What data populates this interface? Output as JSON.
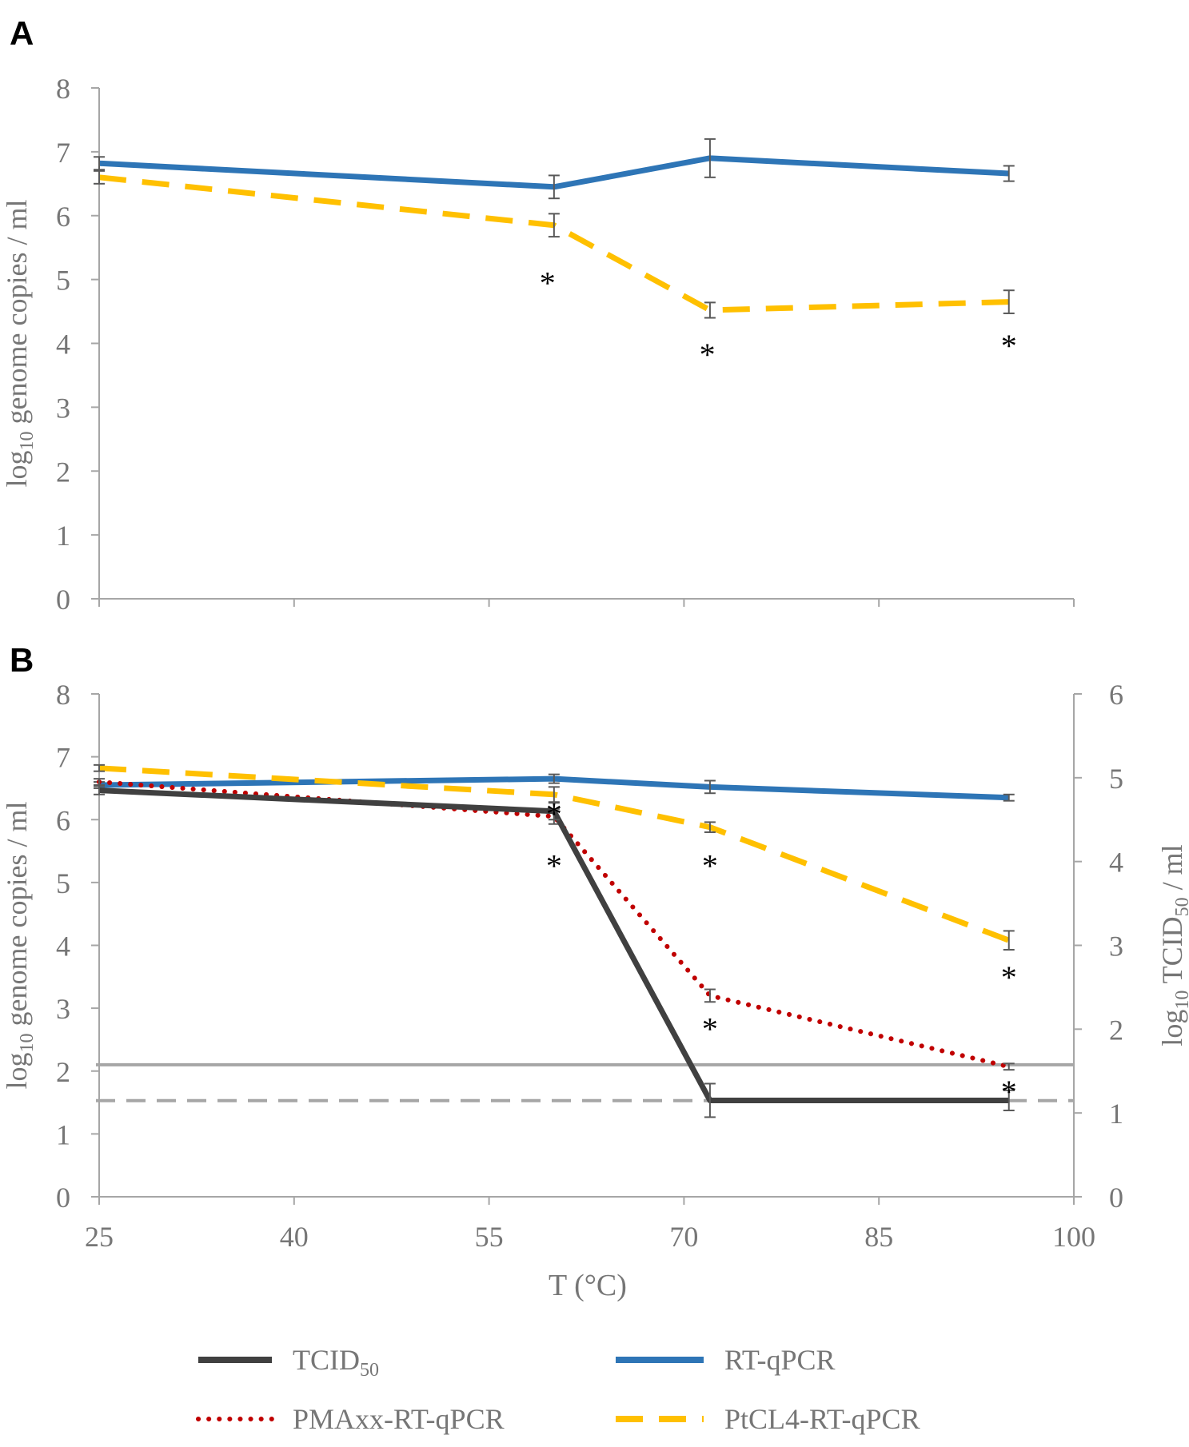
{
  "colors": {
    "tcid50": "#404040",
    "rtqpcr": "#2e75b6",
    "pmaxx": "#c00000",
    "ptcl4": "#ffc000",
    "axis": "#a6a6a6",
    "tick_text": "#767676",
    "error_bar": "#595959",
    "loq_line": "#a6a6a6"
  },
  "chart_data": [
    {
      "type": "line",
      "panel_label": "A",
      "title": "",
      "ylabel": "log10 genome copies / ml",
      "ylabel_parts": {
        "prefix": "log",
        "sub": "10",
        "rest": " genome  copies / ml"
      },
      "xlabel": "",
      "xlim": [
        25,
        100
      ],
      "ylim": [
        0,
        8
      ],
      "y_ticks": [
        "0",
        "1",
        "2",
        "3",
        "4",
        "5",
        "6",
        "7",
        "8"
      ],
      "x_ticks": [
        "",
        "",
        "",
        "",
        "",
        ""
      ],
      "x_tick_values": [
        25,
        40,
        55,
        70,
        85,
        100
      ],
      "series": [
        {
          "name": "RT-qPCR",
          "key": "rtqpcr",
          "style": "solid",
          "x": [
            25,
            60,
            72,
            95
          ],
          "y": [
            6.82,
            6.45,
            6.9,
            6.66
          ],
          "err": [
            0.1,
            0.18,
            0.3,
            0.12
          ]
        },
        {
          "name": "PtCL4-RT-qPCR",
          "key": "ptcl4",
          "style": "dashed",
          "x": [
            25,
            60,
            72,
            95
          ],
          "y": [
            6.6,
            5.85,
            4.52,
            4.65
          ],
          "err": [
            0.1,
            0.18,
            0.12,
            0.18
          ]
        }
      ],
      "annotations": [
        {
          "text": "*",
          "x": 59.5,
          "y": 5.0
        },
        {
          "text": "*",
          "x": 71.8,
          "y": 3.88
        },
        {
          "text": "*",
          "x": 95,
          "y": 4.02
        }
      ]
    },
    {
      "type": "line",
      "panel_label": "B",
      "title": "",
      "ylabel": "log10 genome copies / ml",
      "ylabel_parts": {
        "prefix": "log",
        "sub": "10",
        "rest": " genome  copies / ml"
      },
      "y2label": "log10 TCID50 / ml",
      "y2label_parts": {
        "prefix": "log",
        "sub": "10",
        "mid": " TCID",
        "sub2": "50",
        "rest": " / ml"
      },
      "xlabel": "T (°C)",
      "xlim": [
        25,
        100
      ],
      "ylim": [
        0,
        8
      ],
      "y2lim": [
        0,
        6
      ],
      "y_ticks": [
        "0",
        "1",
        "2",
        "3",
        "4",
        "5",
        "6",
        "7",
        "8"
      ],
      "y2_ticks": [
        "0",
        "1",
        "2",
        "3",
        "4",
        "5",
        "6"
      ],
      "x_ticks": [
        "25",
        "40",
        "55",
        "70",
        "85",
        "100"
      ],
      "x_tick_values": [
        25,
        40,
        55,
        70,
        85,
        100
      ],
      "series": [
        {
          "name": "RT-qPCR",
          "key": "rtqpcr",
          "style": "solid",
          "axis": "left",
          "x": [
            25,
            60,
            72,
            95
          ],
          "y": [
            6.55,
            6.65,
            6.52,
            6.35
          ],
          "err": [
            0.05,
            0.07,
            0.1,
            0.05
          ]
        },
        {
          "name": "PtCL4-RT-qPCR",
          "key": "ptcl4",
          "style": "dashed",
          "axis": "left",
          "x": [
            25,
            60,
            72,
            95
          ],
          "y": [
            6.82,
            6.4,
            5.88,
            4.08
          ],
          "err": [
            0.05,
            0.12,
            0.08,
            0.15
          ]
        },
        {
          "name": "PMAxx-RT-qPCR",
          "key": "pmaxx",
          "style": "dotted",
          "axis": "left",
          "x": [
            25,
            60,
            72,
            95
          ],
          "y": [
            6.6,
            6.05,
            3.2,
            2.07
          ],
          "err": [
            0.05,
            0.12,
            0.1,
            0.05
          ]
        },
        {
          "name": "TCID50",
          "key": "tcid50",
          "style": "solid",
          "axis": "right",
          "x": [
            25,
            60,
            72,
            95
          ],
          "y": [
            4.85,
            4.6,
            1.15,
            1.15
          ],
          "err": [
            0.05,
            0.1,
            0.2,
            0.12
          ]
        }
      ],
      "reference_lines": [
        {
          "name": "LOQ genome copies",
          "style": "solid",
          "y": 2.1
        },
        {
          "name": "LOD TCID50",
          "style": "dashed",
          "y": 1.53
        }
      ],
      "annotations": [
        {
          "text": "*",
          "x": 60,
          "y": 6.15
        },
        {
          "text": "*",
          "x": 60,
          "y": 5.32
        },
        {
          "text": "*",
          "x": 72,
          "y": 5.32
        },
        {
          "text": "*",
          "x": 72,
          "y": 2.73
        },
        {
          "text": "*",
          "x": 95,
          "y": 3.55
        },
        {
          "text": "*",
          "x": 95,
          "y": 1.73
        }
      ]
    }
  ],
  "legend": {
    "position": "bottom",
    "items": [
      {
        "label": "TCID",
        "sub": "50",
        "key": "tcid50",
        "style": "solid"
      },
      {
        "label": "RT-qPCR",
        "sub": "",
        "key": "rtqpcr",
        "style": "solid"
      },
      {
        "label": "PMAxx-RT-qPCR",
        "sub": "",
        "key": "pmaxx",
        "style": "dotted"
      },
      {
        "label": "PtCL4-RT-qPCR",
        "sub": "",
        "key": "ptcl4",
        "style": "dashed"
      }
    ]
  }
}
